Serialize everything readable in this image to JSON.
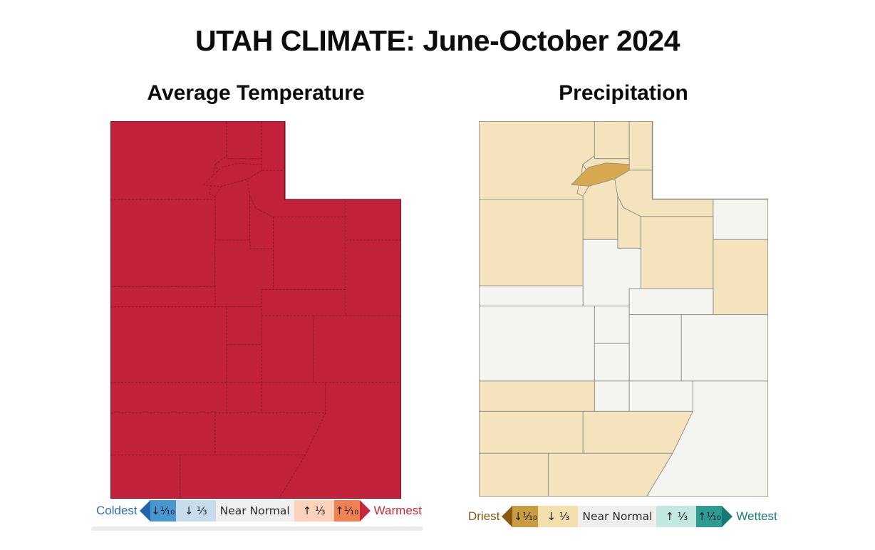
{
  "title": "UTAH CLIMATE: June-October 2024",
  "panels": [
    {
      "id": "temperature",
      "subtitle": "Average Temperature",
      "legend": {
        "start_label": "Coldest",
        "start_color": "#2d6db8",
        "end_label": "Warmest",
        "end_color": "#c5293c",
        "items": [
          {
            "label": "↓⅒",
            "shape": "arrow-left",
            "body_color": "#4a96ce",
            "tip_color": "#2265ac"
          },
          {
            "label": "↓ ⅓",
            "shape": "box",
            "body_color": "#c7ddec"
          },
          {
            "label": "Near Normal",
            "shape": "box-wide",
            "body_color": "#f0efed"
          },
          {
            "label": "↑ ⅓",
            "shape": "box",
            "body_color": "#fcd2ba"
          },
          {
            "label": "↑⅒",
            "shape": "arrow-right",
            "body_color": "#f08150",
            "tip_color": "#c5293c"
          }
        ]
      },
      "map": {
        "mode": "uniform",
        "uniform_color": "#c2213c",
        "border_color": "rgba(112,12,30,0.55)",
        "outline_color": "#7e0e24",
        "counties_source": 0
      }
    },
    {
      "id": "precipitation",
      "subtitle": "Precipitation",
      "legend": {
        "start_label": "Driest",
        "start_color": "#8a550f",
        "end_label": "Wettest",
        "end_color": "#157a7c",
        "items": [
          {
            "label": "↓⅒",
            "shape": "arrow-left",
            "body_color": "#c89d42",
            "tip_color": "#8a5a10"
          },
          {
            "label": "↓ ⅓",
            "shape": "box",
            "body_color": "#f2dfac"
          },
          {
            "label": "Near Normal",
            "shape": "box-wide",
            "body_color": "#f0efed"
          },
          {
            "label": "↑ ⅓",
            "shape": "box",
            "body_color": "#c4e7df"
          },
          {
            "label": "↑⅒",
            "shape": "arrow-right",
            "body_color": "#2e9b93",
            "tip_color": "#157a74"
          }
        ]
      },
      "map": {
        "mode": "categories",
        "base_category": "below-third",
        "category_colors": {
          "driest-tenth": "#d8a850",
          "below-third": "#f5e3bd",
          "near-normal": "#f4f4f1"
        },
        "border_color": "#98968e",
        "outline_color": "#8b897f",
        "counties_source": 1
      }
    }
  ],
  "chart_data": [
    {
      "type": "choropleth",
      "title": "Average Temperature",
      "region": "Utah, by county",
      "period": "June-October 2024",
      "scale": [
        "Coldest ⅒",
        "Below ⅓",
        "Near Normal",
        "Above ⅓",
        "Warmest ⅒"
      ],
      "counties": {
        "box-elder": "warmest",
        "cache": "warmest",
        "rich": "warmest",
        "weber": "warmest",
        "morgan": "warmest",
        "davis": "warmest",
        "salt-lake": "warmest",
        "summit": "warmest",
        "daggett": "warmest",
        "wasatch": "warmest",
        "tooele": "warmest",
        "duchesne": "warmest",
        "uintah": "warmest",
        "utah": "warmest",
        "juab": "warmest",
        "millard": "warmest",
        "sanpete": "warmest",
        "carbon": "warmest",
        "emery": "warmest",
        "grand": "warmest",
        "sevier": "warmest",
        "piute": "warmest",
        "wayne": "warmest",
        "beaver": "warmest",
        "iron": "warmest",
        "garfield": "warmest",
        "washington": "warmest",
        "kane": "warmest",
        "san-juan": "warmest"
      }
    },
    {
      "type": "choropleth",
      "title": "Precipitation",
      "region": "Utah, by county",
      "period": "June-October 2024",
      "scale": [
        "Driest ⅒",
        "Below ⅓",
        "Near Normal",
        "Above ⅓",
        "Wettest ⅒"
      ],
      "counties": {
        "box-elder": "below-third",
        "cache": "below-third",
        "rich": "below-third",
        "weber": "below-third",
        "morgan": "driest-tenth",
        "davis": "below-third",
        "salt-lake": "below-third",
        "summit": "below-third",
        "daggett": "near-normal",
        "wasatch": "below-third",
        "tooele": "below-third",
        "duchesne": "below-third",
        "uintah": "below-third",
        "utah": "near-normal",
        "juab": "near-normal",
        "millard": "near-normal",
        "sanpete": "near-normal",
        "carbon": "near-normal",
        "emery": "near-normal",
        "grand": "near-normal",
        "sevier": "near-normal",
        "piute": "near-normal",
        "wayne": "near-normal",
        "beaver": "below-third",
        "iron": "below-third",
        "garfield": "below-third",
        "washington": "below-third",
        "kane": "below-third",
        "san-juan": "near-normal"
      }
    }
  ]
}
